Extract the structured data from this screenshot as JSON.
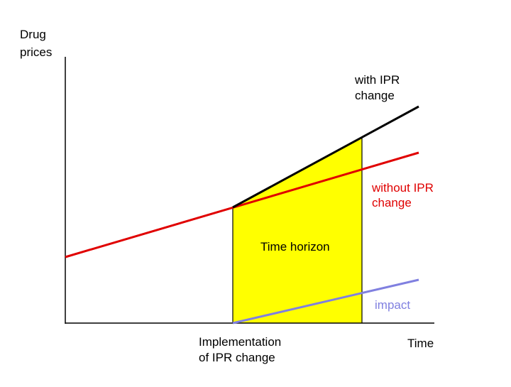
{
  "y_axis_label": [
    "Drug",
    "prices"
  ],
  "x_axis_label": "Time",
  "curves": {
    "with_ipr_change": [
      "with IPR",
      "change"
    ],
    "without_ipr_change": [
      "without IPR",
      "change"
    ],
    "impact": "impact"
  },
  "region_label": "Time horizon",
  "event_label": [
    "Implementation",
    "of IPR change"
  ]
}
